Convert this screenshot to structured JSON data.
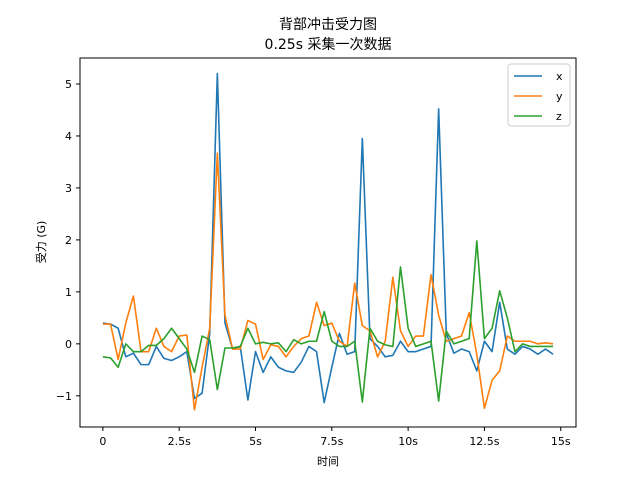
{
  "chart_data": {
    "type": "line",
    "title_line1": "背部冲击受力图",
    "title_line2": "0.25s 采集一次数据",
    "xlabel": "时间",
    "ylabel": "受力 (G)",
    "xlim": [
      -0.75,
      15.5
    ],
    "ylim": [
      -1.6,
      5.5
    ],
    "x_ticks": [
      {
        "value": 0,
        "label": "0"
      },
      {
        "value": 2.5,
        "label": "2.5s"
      },
      {
        "value": 5,
        "label": "5s"
      },
      {
        "value": 7.5,
        "label": "7.5s"
      },
      {
        "value": 10,
        "label": "10s"
      },
      {
        "value": 12.5,
        "label": "12.5s"
      },
      {
        "value": 15,
        "label": "15s"
      }
    ],
    "y_ticks": [
      {
        "value": -1,
        "label": "−1"
      },
      {
        "value": 0,
        "label": "0"
      },
      {
        "value": 1,
        "label": "1"
      },
      {
        "value": 2,
        "label": "2"
      },
      {
        "value": 3,
        "label": "3"
      },
      {
        "value": 4,
        "label": "4"
      },
      {
        "value": 5,
        "label": "5"
      }
    ],
    "legend_position": "top-right",
    "x_start": 0,
    "x_step": 0.25,
    "series": [
      {
        "name": "x",
        "color": "#1f77b4",
        "values": [
          0.4,
          0.38,
          0.3,
          -0.25,
          -0.18,
          -0.4,
          -0.4,
          -0.05,
          -0.28,
          -0.32,
          -0.25,
          -0.15,
          -1.05,
          -0.95,
          0.2,
          5.2,
          0.4,
          -0.1,
          -0.05,
          -1.08,
          -0.15,
          -0.55,
          -0.25,
          -0.45,
          -0.52,
          -0.55,
          -0.35,
          -0.05,
          -0.15,
          -1.13,
          -0.45,
          0.2,
          -0.2,
          -0.15,
          3.95,
          0.1,
          -0.05,
          -0.25,
          -0.22,
          0.05,
          -0.15,
          -0.15,
          -0.1,
          -0.05,
          4.52,
          0.2,
          -0.18,
          -0.1,
          -0.15,
          -0.52,
          0.05,
          -0.15,
          0.8,
          -0.1,
          -0.2,
          -0.05,
          -0.1,
          -0.2,
          -0.1,
          -0.2
        ]
      },
      {
        "name": "y",
        "color": "#ff7f0e",
        "values": [
          0.38,
          0.38,
          -0.3,
          0.4,
          0.92,
          -0.15,
          -0.15,
          0.3,
          -0.05,
          -0.15,
          0.15,
          0.17,
          -1.27,
          -0.45,
          0.3,
          3.67,
          0.55,
          -0.1,
          -0.1,
          0.45,
          0.38,
          -0.3,
          -0.02,
          -0.05,
          -0.25,
          -0.05,
          0.1,
          0.15,
          0.8,
          0.35,
          0.4,
          0.05,
          -0.05,
          1.17,
          0.35,
          0.25,
          -0.25,
          0.05,
          1.28,
          0.25,
          -0.05,
          0.15,
          0.15,
          1.33,
          0.55,
          0.05,
          0.1,
          0.15,
          0.6,
          -0.2,
          -1.24,
          -0.7,
          -0.52,
          0.15,
          0.05,
          0.05,
          0.05,
          0.0,
          0.02,
          0.0
        ]
      },
      {
        "name": "z",
        "color": "#2ca02c",
        "values": [
          -0.25,
          -0.27,
          -0.45,
          0.0,
          -0.15,
          -0.15,
          -0.03,
          -0.03,
          0.1,
          0.3,
          0.1,
          -0.1,
          -0.55,
          0.15,
          0.08,
          -0.88,
          -0.08,
          -0.08,
          -0.05,
          0.3,
          0.0,
          0.03,
          0.0,
          0.02,
          -0.15,
          0.08,
          0.0,
          0.05,
          0.05,
          0.62,
          0.05,
          -0.05,
          -0.05,
          0.05,
          -1.12,
          0.3,
          0.05,
          -0.02,
          -0.05,
          1.48,
          0.3,
          -0.05,
          0.0,
          0.05,
          -1.1,
          0.25,
          0.0,
          0.05,
          0.1,
          1.98,
          0.1,
          0.3,
          1.02,
          0.5,
          -0.15,
          0.0,
          -0.05,
          -0.05,
          -0.05,
          -0.05
        ]
      }
    ]
  }
}
